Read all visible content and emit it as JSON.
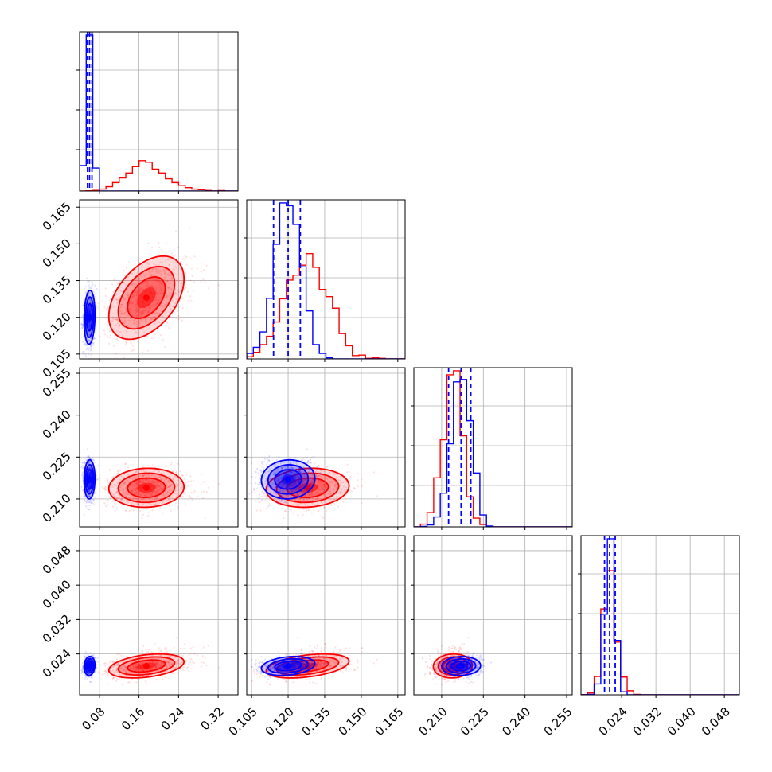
{
  "colors": {
    "red": "#ff0000",
    "blue": "#0000ff",
    "grid": "#b0b0b0",
    "axis": "#000000"
  },
  "chart_data": {
    "type": "corner-plot",
    "grid": true,
    "parameters": [
      {
        "range": [
          0.04,
          0.36
        ],
        "ticks": [
          0.08,
          0.16,
          0.24,
          0.32
        ],
        "tick_labels": [
          "0.08",
          "0.16",
          "0.24",
          "0.32"
        ]
      },
      {
        "range": [
          0.103,
          0.168
        ],
        "ticks": [
          0.105,
          0.12,
          0.135,
          0.15,
          0.165
        ],
        "tick_labels": [
          "0.105",
          "0.120",
          "0.135",
          "0.150",
          "0.165"
        ]
      },
      {
        "range": [
          0.2,
          0.257
        ],
        "ticks": [
          0.21,
          0.225,
          0.24,
          0.255
        ],
        "tick_labels": [
          "0.210",
          "0.225",
          "0.240",
          "0.255"
        ]
      },
      {
        "range": [
          0.0145,
          0.0515
        ],
        "ticks": [
          0.024,
          0.032,
          0.04,
          0.048
        ],
        "tick_labels": [
          "0.024",
          "0.032",
          "0.040",
          "0.048"
        ]
      }
    ],
    "series": [
      {
        "color": "red",
        "mean": [
          0.175,
          0.128,
          0.214,
          0.0212
        ],
        "std": [
          0.038,
          0.0085,
          0.0035,
          0.0014
        ],
        "corr": [
          [
            1,
            0.45,
            0.05,
            0.35
          ],
          [
            0.45,
            1,
            0.1,
            0.4
          ],
          [
            0.05,
            0.1,
            1,
            0.05
          ],
          [
            0.35,
            0.4,
            0.05,
            1
          ]
        ],
        "quantile_lines": false
      },
      {
        "color": "blue",
        "mean": [
          0.06,
          0.12,
          0.217,
          0.0212
        ],
        "std": [
          0.0055,
          0.0055,
          0.0035,
          0.0011
        ],
        "corr": [
          [
            1,
            0.1,
            0.05,
            0.1
          ],
          [
            0.1,
            1,
            0.05,
            0.25
          ],
          [
            0.05,
            0.05,
            1,
            0.05
          ],
          [
            0.1,
            0.25,
            0.05,
            1
          ]
        ],
        "quantile_lines": true,
        "quantiles": [
          [
            0.056,
            0.06,
            0.065
          ],
          [
            0.114,
            0.12,
            0.125
          ],
          [
            0.2125,
            0.217,
            0.2205
          ],
          [
            0.02,
            0.0212,
            0.0225
          ]
        ]
      }
    ]
  }
}
